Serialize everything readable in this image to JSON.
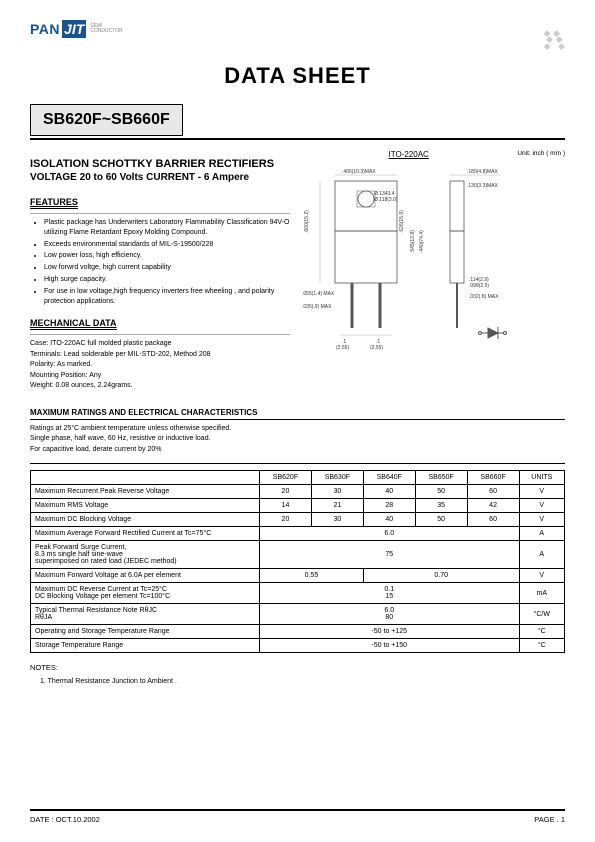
{
  "logo": {
    "pan": "PAN",
    "jit": "JIT",
    "sub1": "SEMI",
    "sub2": "CONDUCTOR"
  },
  "title": "DATA  SHEET",
  "partno": "SB620F~SB660F",
  "heading1": "ISOLATION SCHOTTKY BARRIER RECTIFIERS",
  "heading2": "VOLTAGE  20 to 60 Volts    CURRENT - 6 Ampere",
  "features_h": "FEATURES",
  "features": [
    "Plastic package has Underwriters Laboratory Flammability Classification 94V-O utilizing Flame Retardant Epoxy Molding Compound.",
    "Exceeds environmental standards of MIL-S-19500/228",
    "Low power loss, high efficiency.",
    "Low forwrd voltge, high current capability",
    "High surge capacity.",
    "For use in low voltage,high frequency inverters free wheeling , and polarity protection applications."
  ],
  "mech_h": "MECHANICAL DATA",
  "mech": [
    "Case: ITO-220AC full molded plastic package",
    "Terminals: Lead solderable per MIL-STD-202, Method 208",
    "Polarity:   As marked.",
    "Mounting Position: Any",
    "Weight: 0.08 ounces, 2.24grams."
  ],
  "package_name": "ITO-220AC",
  "unit_label": "Unit: inch ( mm )",
  "dim_labels": {
    "top_w": ".406(10.3)MAX",
    "top_r": ".189(4.8)MAX",
    "top_r2": ".130(3.3)MAX",
    "hole_d": "Ø.1343.4",
    "hole_d2": "Ø.118(3.0)",
    "left_h": ".413(2.05)",
    "body_h": ".600(15.2)",
    "slot_h": ".626(15.9)",
    "full_h": ".835(14.5)",
    "lead_w": ".055(1.4) MAX",
    "lead_w2": ".035(.9) MAX",
    "pitch1": ".1",
    "pitch2": "(2.55)",
    "pitch3": ".1",
    "pitch4": "(2.55)",
    "side1": ".114(2.9)",
    "side2": ".098(2.5)",
    "side3": ".032(.8) MAX",
    "mid1": ".545(13.8)",
    "mid2": ".440(74.4)"
  },
  "ratings_h": "MAXIMUM RATINGS AND ELECTRICAL CHARACTERISTICS",
  "ratings_notes": [
    "Ratings at 25°C ambient temperature unless otherwise specified.",
    "Single phase, half wave, 60 Hz, resistive or inductive load.",
    "For capacitive load, derate current by 20%"
  ],
  "table": {
    "headers": [
      "",
      "SB620F",
      "SB630F",
      "SB640F",
      "SB650F",
      "SB660F",
      "UNITS"
    ],
    "rows": [
      {
        "param": "Maximum Recurrent Peak Reverse Voltage",
        "cells": [
          "20",
          "30",
          "40",
          "50",
          "60"
        ],
        "unit": "V"
      },
      {
        "param": "Maximum RMS Voltage",
        "cells": [
          "14",
          "21",
          "28",
          "35",
          "42"
        ],
        "unit": "V"
      },
      {
        "param": "Maximum DC Blocking Voltage",
        "cells": [
          "20",
          "30",
          "40",
          "50",
          "60"
        ],
        "unit": "V"
      },
      {
        "param": "Maximum Average Forward Rectified Current at Tc=75°C",
        "span": "6.0",
        "unit": "A"
      },
      {
        "param": "Peak Forward Surge Current,\n8.3 ms single half sine-wave\nsuperimposed on rated load (JEDEC method)",
        "span": "75",
        "unit": "A"
      },
      {
        "param": "Maximum Forward Voltage at 6.0A per element",
        "split": [
          "0.55",
          "0.70"
        ],
        "split_cols": [
          2,
          3
        ],
        "unit": "V"
      },
      {
        "param": "Maximum DC Reverse Current at Tc=25°C\nDC Blocking Voltage per element  Tc=100°C",
        "span": "0.1\n15",
        "unit": "mA"
      },
      {
        "param": "Typical Thermal Resistance Note RθJC\n                                                   RθJA",
        "span": "6.0\n80",
        "unit": "°C/W"
      },
      {
        "param": "Operating and Storage Temperature Range",
        "span": "-50 to +125",
        "unit": "°C"
      },
      {
        "param": "Storage Temperature Range",
        "span": "-50 to +150",
        "unit": "°C"
      }
    ]
  },
  "notes_h": "NOTES:",
  "notes": [
    "1. Thermal Resistance Junction to Ambient ."
  ],
  "footer": {
    "date": "DATE : OCT.10.2002",
    "page": "PAGE .  1"
  }
}
